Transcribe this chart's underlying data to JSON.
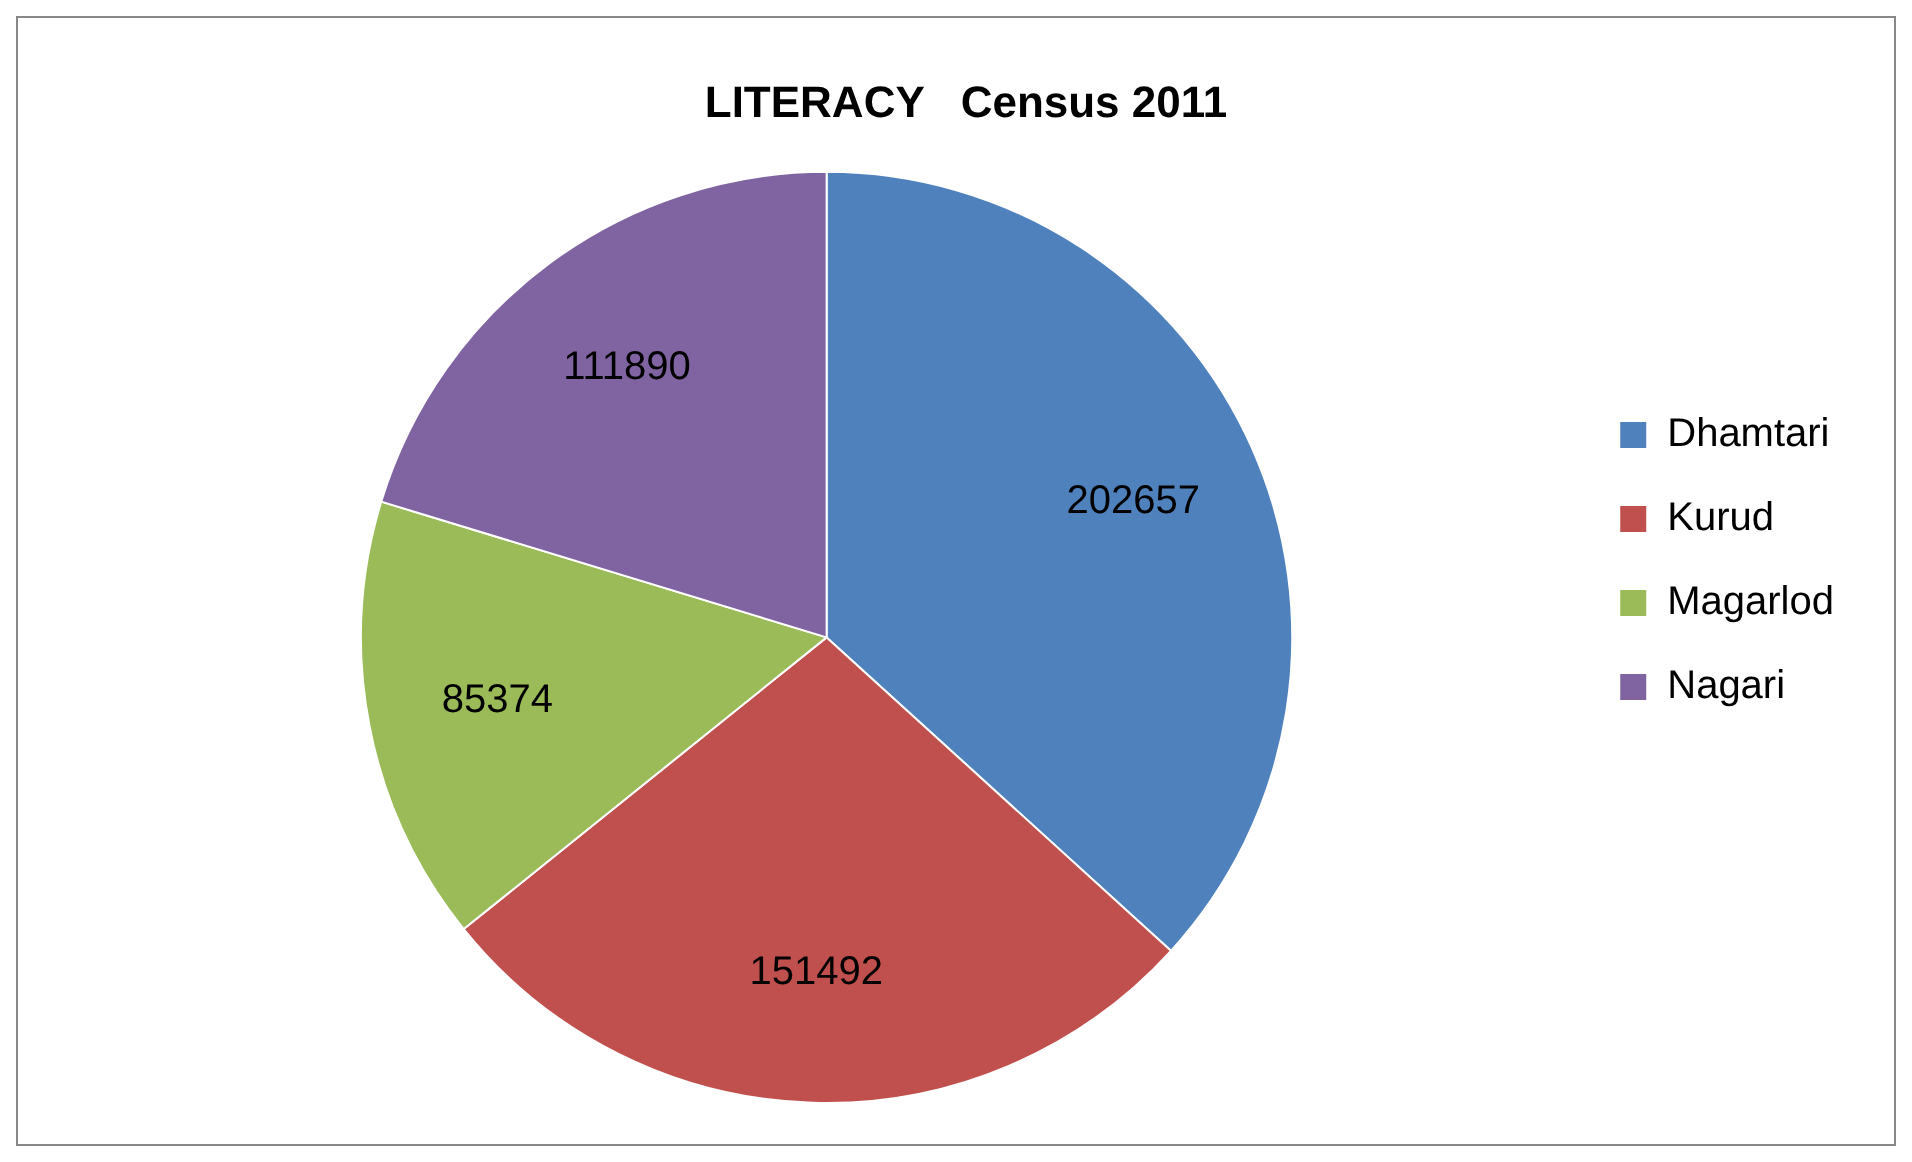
{
  "chart_data": {
    "type": "pie",
    "title": "LITERACY   Census 2011",
    "categories": [
      "Dhamtari",
      "Kurud",
      "Magarlod",
      "Nagari"
    ],
    "values": [
      202657,
      151492,
      85374,
      111890
    ],
    "colors": [
      "#4f81bd",
      "#c0504d",
      "#9bbb59",
      "#8064a2"
    ],
    "data_labels": true,
    "legend": "right"
  }
}
